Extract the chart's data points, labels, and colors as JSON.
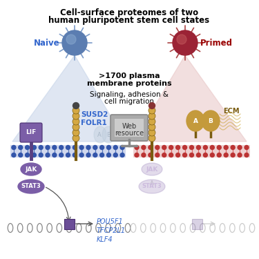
{
  "title_line1": "Cell-surface proteomes of two",
  "title_line2": "human pluripotent stem cell states",
  "naive_label": "Naive",
  "primed_label": "Primed",
  "center_text1": ">1700 plasma",
  "center_text2": "membrane proteins",
  "center_text3": "Signaling, adhesion &",
  "center_text4": "cell migration",
  "web_text1": "Web",
  "web_text2": "resource",
  "naive_proteins": "SUSD2\nFOLR1",
  "ecm_label": "ECM",
  "gene_labels": "POU5F1\nTFCP2L1\nKLF4",
  "lif_label": "LIF",
  "jak_label": "JAK",
  "stat3_label": "STAT3",
  "naive_cell_color": "#5B7DB1",
  "primed_cell_color": "#9B2335",
  "naive_shadow_color": "#C5D3E8",
  "primed_shadow_color": "#E8C5C5",
  "naive_text_color": "#3366CC",
  "primed_text_color": "#990000",
  "protein_yellow": "#D4A843",
  "protein_dark": "#7A5C10",
  "jak_color": "#7B5EA7",
  "lif_color": "#7B5EA7",
  "gene_color": "#3366CC",
  "ecm_color": "#C49A3C",
  "bg_color": "#FFFFFF"
}
